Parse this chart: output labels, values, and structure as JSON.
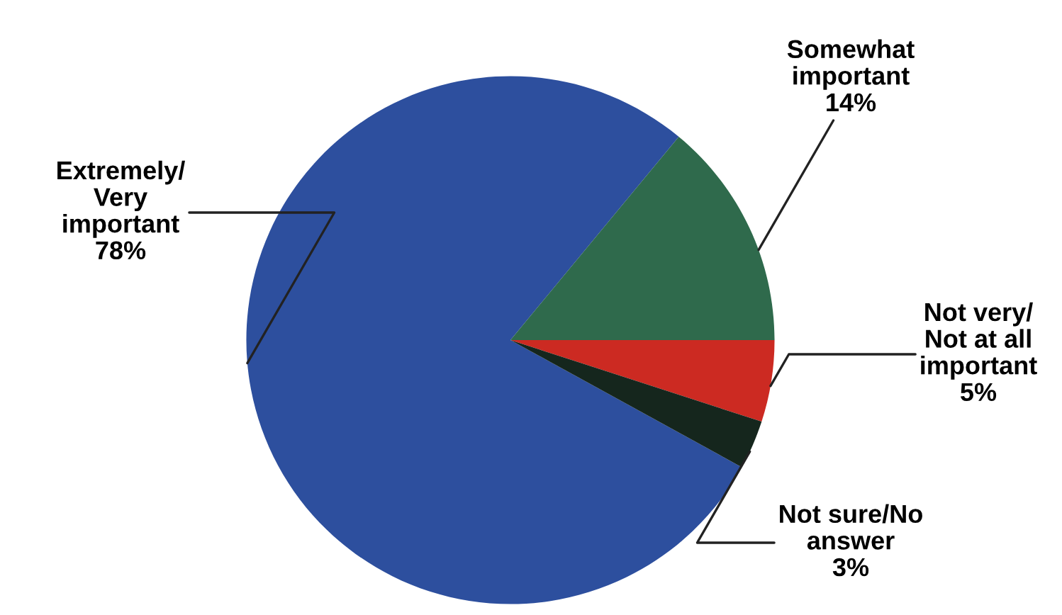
{
  "chart_data": {
    "type": "pie",
    "categories": [
      "Extremely/\nVery\nimportant",
      "Somewhat\nimportant",
      "Not very/\nNot at all\nimportant",
      "Not sure/No\nanswer"
    ],
    "values": [
      78,
      14,
      5,
      3
    ],
    "value_labels": [
      "78%",
      "14%",
      "5%",
      "3%"
    ],
    "colors": [
      "#2d4f9e",
      "#2f6a4c",
      "#cc2a22",
      "#15261d"
    ],
    "legend": false
  }
}
